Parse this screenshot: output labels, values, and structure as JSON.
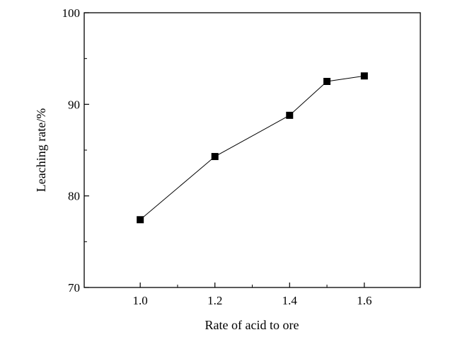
{
  "chart_data": {
    "type": "line",
    "title": "",
    "xlabel": "Rate of acid to ore",
    "ylabel": "Leaching rate/%",
    "xlim": [
      0.85,
      1.75
    ],
    "ylim": [
      70,
      100
    ],
    "x_ticks": [
      1.0,
      1.2,
      1.4,
      1.6
    ],
    "x_tick_labels": [
      "1.0",
      "1.2",
      "1.4",
      "1.6"
    ],
    "y_ticks": [
      70,
      80,
      90,
      100
    ],
    "y_tick_labels": [
      "70",
      "80",
      "90",
      "100"
    ],
    "grid": false,
    "legend": "none",
    "series": [
      {
        "marker": "square",
        "color": "#000000",
        "x": [
          1.0,
          1.2,
          1.4,
          1.5,
          1.6
        ],
        "y": [
          77.4,
          84.3,
          88.8,
          92.5,
          93.1
        ]
      }
    ]
  }
}
